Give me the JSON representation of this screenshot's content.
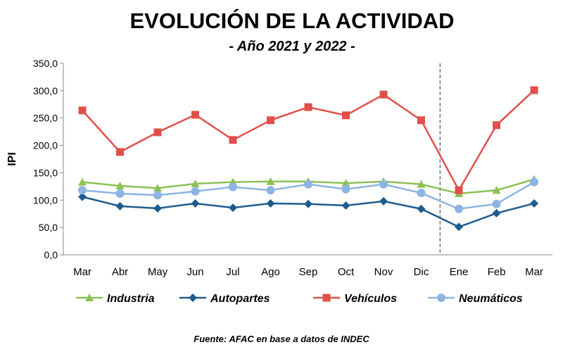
{
  "chart_data": {
    "type": "line",
    "title": "EVOLUCIÓN DE LA ACTIVIDAD",
    "subtitle": "- Año 2021 y 2022 -",
    "ylabel": "IPI",
    "xlabel": "",
    "ylim": [
      0,
      350
    ],
    "yticks": [
      "0,0",
      "50,0",
      "100,0",
      "150,0",
      "200,0",
      "250,0",
      "300,0",
      "350,0"
    ],
    "categories": [
      "Mar",
      "Abr",
      "May",
      "Jun",
      "Jul",
      "Ago",
      "Sep",
      "Oct",
      "Nov",
      "Dic",
      "Ene",
      "Feb",
      "Mar"
    ],
    "grid": false,
    "legend_placement": "bottom",
    "divider_between": [
      "Dic",
      "Ene"
    ],
    "series": [
      {
        "name": "Industria",
        "color": "#8DC153",
        "marker": "triangle",
        "values": [
          133,
          126,
          122,
          130,
          133,
          134,
          134,
          131,
          134,
          129,
          112,
          118,
          138
        ]
      },
      {
        "name": "Autopartes",
        "color": "#1F5C8E",
        "marker": "diamond",
        "values": [
          106,
          89,
          85,
          94,
          86,
          94,
          93,
          90,
          98,
          84,
          51,
          76,
          94
        ]
      },
      {
        "name": "Vehículos",
        "color": "#E0504A",
        "marker": "square",
        "values": [
          264,
          188,
          224,
          256,
          210,
          246,
          270,
          255,
          293,
          246,
          118,
          237,
          301
        ]
      },
      {
        "name": "Neumáticos",
        "color": "#8DB4E2",
        "marker": "circle",
        "values": [
          118,
          112,
          109,
          116,
          124,
          118,
          129,
          120,
          129,
          113,
          84,
          93,
          133
        ]
      }
    ],
    "source": "Fuente: AFAC en base a datos de INDEC"
  }
}
